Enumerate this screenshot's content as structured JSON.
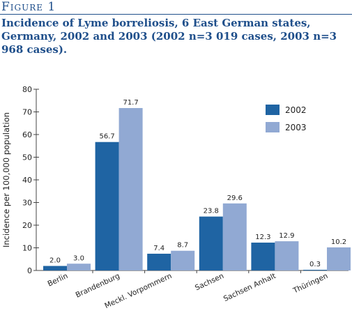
{
  "figure_label": "Figure 1",
  "title": "Incidence of Lyme borreliosis, 6 East German states, Germany, 2002 and 2003 (2002 n=3 019 cases, 2003 n=3 968 cases).",
  "colors": {
    "title": "#1f4f8b",
    "s2002": "#1f64a3",
    "s2003": "#91a9d3"
  },
  "chart_data": {
    "type": "bar",
    "title": "Incidence of Lyme borreliosis, 6 East German states, Germany, 2002 and 2003 (2002 n=3 019 cases, 2003 n=3 968 cases).",
    "xlabel": "",
    "ylabel": "Incidence per 100,000 population",
    "ylim": [
      0,
      80
    ],
    "yticks": [
      0,
      10,
      20,
      30,
      40,
      50,
      60,
      70,
      80
    ],
    "categories": [
      "Berlin",
      "Brandenburg",
      "Meckl. Vorpommern",
      "Sachsen",
      "Sachsen Anhalt",
      "Thüringen"
    ],
    "series": [
      {
        "name": "2002",
        "color": "#1f64a3",
        "values": [
          2.0,
          56.7,
          7.4,
          23.8,
          12.3,
          0.3
        ],
        "labels": [
          "2.0",
          "56.7",
          "7.4",
          "23.8",
          "12.3",
          "0.3"
        ]
      },
      {
        "name": "2003",
        "color": "#91a9d3",
        "values": [
          3.0,
          71.7,
          8.7,
          29.6,
          12.9,
          10.2
        ],
        "labels": [
          "3.0",
          "71.7",
          "8.7",
          "29.6",
          "12.9",
          "10.2"
        ]
      }
    ],
    "legend_position": "right",
    "grid": false
  }
}
